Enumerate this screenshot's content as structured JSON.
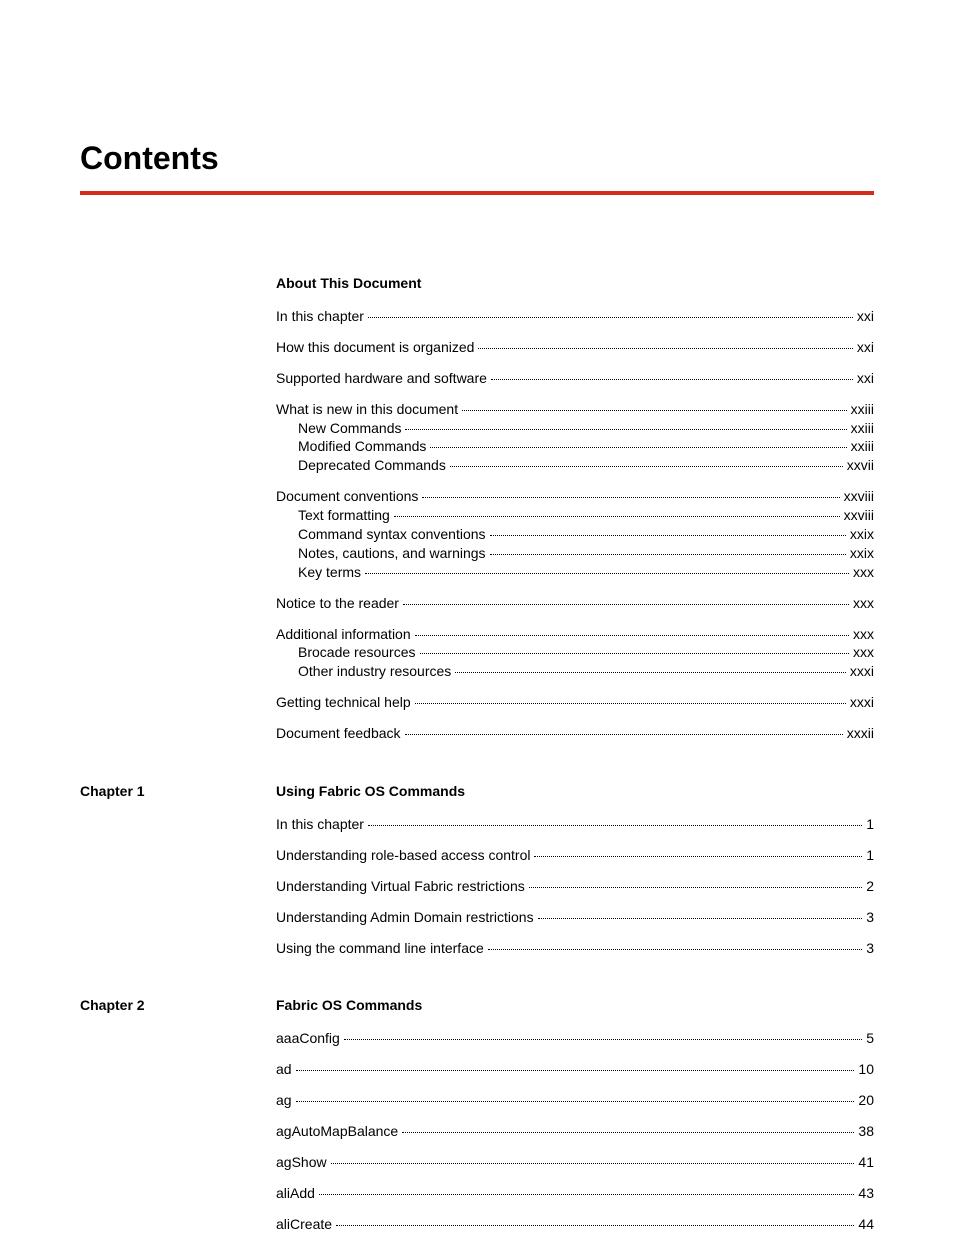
{
  "colors": {
    "accent": "#d52b1e",
    "text": "#000000",
    "background": "#ffffff"
  },
  "typography": {
    "title_fontsize": 32,
    "heading_fontsize": 14,
    "body_fontsize": 14
  },
  "page_title": "Contents",
  "sections": [
    {
      "left": "",
      "heading": "About This Document",
      "blocks": [
        [
          {
            "label": "In this chapter",
            "page": "xxi",
            "sub": false
          }
        ],
        [
          {
            "label": "How this document is organized",
            "page": "xxi",
            "sub": false
          }
        ],
        [
          {
            "label": "Supported hardware and software",
            "page": "xxi",
            "sub": false
          }
        ],
        [
          {
            "label": "What is new in this document",
            "page": "xxiii",
            "sub": false
          },
          {
            "label": "New Commands",
            "page": "xxiii",
            "sub": true
          },
          {
            "label": "Modified Commands",
            "page": "xxiii",
            "sub": true
          },
          {
            "label": "Deprecated Commands",
            "page": "xxvii",
            "sub": true
          }
        ],
        [
          {
            "label": "Document conventions",
            "page": "xxviii",
            "sub": false
          },
          {
            "label": "Text formatting",
            "page": "xxviii",
            "sub": true
          },
          {
            "label": "Command syntax conventions",
            "page": "xxix",
            "sub": true
          },
          {
            "label": "Notes, cautions, and warnings",
            "page": "xxix",
            "sub": true
          },
          {
            "label": "Key terms",
            "page": "xxx",
            "sub": true
          }
        ],
        [
          {
            "label": "Notice to the reader",
            "page": "xxx",
            "sub": false
          }
        ],
        [
          {
            "label": "Additional information",
            "page": "xxx",
            "sub": false
          },
          {
            "label": "Brocade resources",
            "page": "xxx",
            "sub": true
          },
          {
            "label": "Other industry resources",
            "page": "xxxi",
            "sub": true
          }
        ],
        [
          {
            "label": "Getting technical help",
            "page": "xxxi",
            "sub": false
          }
        ],
        [
          {
            "label": "Document feedback",
            "page": "xxxii",
            "sub": false
          }
        ]
      ]
    },
    {
      "left": "Chapter 1",
      "heading": "Using Fabric OS Commands",
      "blocks": [
        [
          {
            "label": "In this chapter",
            "page": "1",
            "sub": false
          }
        ],
        [
          {
            "label": "Understanding role-based access control",
            "page": "1",
            "sub": false
          }
        ],
        [
          {
            "label": "Understanding Virtual Fabric restrictions",
            "page": "2",
            "sub": false
          }
        ],
        [
          {
            "label": "Understanding Admin Domain restrictions",
            "page": "3",
            "sub": false
          }
        ],
        [
          {
            "label": "Using the command line interface",
            "page": "3",
            "sub": false
          }
        ]
      ]
    },
    {
      "left": "Chapter 2",
      "heading": "Fabric OS Commands",
      "blocks": [
        [
          {
            "label": "aaaConfig",
            "page": "5",
            "sub": false
          }
        ],
        [
          {
            "label": "ad",
            "page": "10",
            "sub": false
          }
        ],
        [
          {
            "label": "ag",
            "page": "20",
            "sub": false
          }
        ],
        [
          {
            "label": "agAutoMapBalance",
            "page": "38",
            "sub": false
          }
        ],
        [
          {
            "label": "agShow",
            "page": "41",
            "sub": false
          }
        ],
        [
          {
            "label": "aliAdd",
            "page": "43",
            "sub": false
          }
        ],
        [
          {
            "label": "aliCreate",
            "page": "44",
            "sub": false
          }
        ]
      ]
    }
  ]
}
